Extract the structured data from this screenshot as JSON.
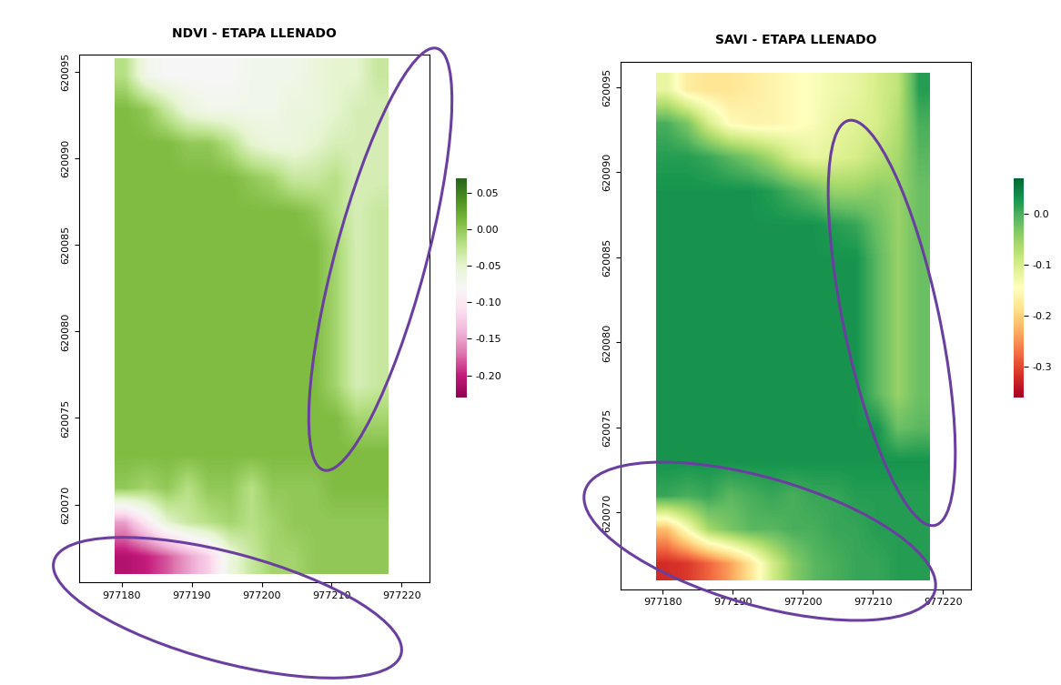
{
  "chart_data": [
    {
      "type": "heatmap",
      "title": "NDVI - ETAPA LLENADO",
      "xlim": [
        977174,
        977224
      ],
      "xticks": [
        977180,
        977190,
        977200,
        977210,
        977220
      ],
      "ylim": [
        620065.5,
        620096
      ],
      "yticks": [
        620070,
        620075,
        620080,
        620085,
        620090,
        620095
      ],
      "cells_x_range": [
        977179,
        977218
      ],
      "cells_y_range": [
        620066,
        620095.8
      ],
      "cells": [
        [
          -0.02,
          -0.07,
          -0.08,
          -0.08,
          -0.08,
          -0.08,
          -0.07,
          -0.07,
          -0.07,
          -0.06,
          -0.05,
          -0.05,
          -0.03
        ],
        [
          0.01,
          0.0,
          -0.03,
          -0.06,
          -0.07,
          -0.07,
          -0.07,
          -0.07,
          -0.06,
          -0.06,
          -0.05,
          -0.04,
          -0.04
        ],
        [
          0.01,
          0.01,
          0.01,
          0.0,
          0.0,
          -0.02,
          -0.05,
          -0.06,
          -0.06,
          -0.05,
          -0.04,
          -0.04,
          -0.04
        ],
        [
          0.01,
          0.01,
          0.01,
          0.01,
          0.01,
          0.01,
          0.0,
          -0.01,
          -0.03,
          -0.03,
          -0.02,
          -0.04,
          -0.04
        ],
        [
          0.01,
          0.01,
          0.01,
          0.01,
          0.01,
          0.01,
          0.01,
          0.01,
          0.01,
          0.0,
          -0.02,
          -0.04,
          -0.03
        ],
        [
          0.01,
          0.01,
          0.01,
          0.01,
          0.01,
          0.01,
          0.01,
          0.01,
          0.01,
          0.01,
          -0.01,
          -0.04,
          -0.03
        ],
        [
          0.01,
          0.01,
          0.01,
          0.01,
          0.01,
          0.01,
          0.01,
          0.01,
          0.01,
          0.01,
          -0.01,
          -0.04,
          -0.03
        ],
        [
          0.01,
          0.01,
          0.01,
          0.01,
          0.01,
          0.01,
          0.01,
          0.01,
          0.01,
          0.01,
          -0.01,
          -0.04,
          -0.03
        ],
        [
          0.01,
          0.01,
          0.01,
          0.01,
          0.01,
          0.01,
          0.01,
          0.01,
          0.01,
          0.01,
          -0.01,
          -0.04,
          -0.03
        ],
        [
          0.01,
          0.01,
          0.01,
          0.01,
          0.01,
          0.01,
          0.01,
          0.01,
          0.01,
          0.01,
          -0.01,
          -0.04,
          -0.03
        ],
        [
          0.01,
          0.01,
          0.01,
          0.01,
          0.01,
          0.01,
          0.01,
          0.01,
          0.01,
          0.01,
          0.01,
          -0.01,
          -0.01
        ],
        [
          0.01,
          0.01,
          0.01,
          0.01,
          0.01,
          0.01,
          0.01,
          0.01,
          0.01,
          0.01,
          0.01,
          0.01,
          0.01
        ],
        [
          0.0,
          -0.01,
          0.0,
          -0.02,
          0.0,
          0.0,
          -0.02,
          0.0,
          0.0,
          0.0,
          0.01,
          0.01,
          0.01
        ],
        [
          -0.15,
          -0.1,
          -0.05,
          -0.03,
          -0.02,
          -0.01,
          -0.02,
          -0.01,
          0.0,
          0.0,
          0.0,
          0.0,
          0.0
        ],
        [
          -0.21,
          -0.2,
          -0.18,
          -0.15,
          -0.12,
          -0.06,
          -0.03,
          -0.01,
          -0.01,
          0.0,
          0.0,
          0.0,
          0.0
        ]
      ],
      "color_range": [
        -0.23,
        0.07
      ],
      "color_ticks": [
        {
          "value": 0.05,
          "label": "0.05"
        },
        {
          "value": 0,
          "label": "0.00"
        },
        {
          "value": -0.05,
          "label": "-0.05"
        },
        {
          "value": -0.1,
          "label": "-0.10"
        },
        {
          "value": -0.15,
          "label": "-0.15"
        },
        {
          "value": -0.2,
          "label": "-0.20"
        }
      ]
    },
    {
      "type": "heatmap",
      "title": "SAVI - ETAPA LLENADO",
      "xlim": [
        977174,
        977224
      ],
      "xticks": [
        977180,
        977190,
        977200,
        977210,
        977220
      ],
      "ylim": [
        620065.5,
        620096.5
      ],
      "yticks": [
        620070,
        620075,
        620080,
        620085,
        620090,
        620095
      ],
      "cells_x_range": [
        977179,
        977218
      ],
      "cells_y_range": [
        620066,
        620095.8
      ],
      "cells": [
        [
          -0.12,
          -0.17,
          -0.18,
          -0.18,
          -0.17,
          -0.16,
          -0.15,
          -0.14,
          -0.13,
          -0.12,
          -0.1,
          -0.08,
          0.02
        ],
        [
          0.0,
          -0.03,
          -0.1,
          -0.15,
          -0.16,
          -0.16,
          -0.15,
          -0.14,
          -0.12,
          -0.11,
          -0.1,
          -0.07,
          0.0
        ],
        [
          0.02,
          0.02,
          0.01,
          -0.01,
          -0.03,
          -0.06,
          -0.1,
          -0.12,
          -0.11,
          -0.1,
          -0.08,
          -0.06,
          -0.01
        ],
        [
          0.03,
          0.03,
          0.03,
          0.03,
          0.03,
          0.02,
          0.0,
          -0.02,
          -0.05,
          -0.05,
          -0.04,
          -0.05,
          -0.02
        ],
        [
          0.03,
          0.03,
          0.03,
          0.03,
          0.03,
          0.03,
          0.03,
          0.03,
          0.02,
          0.01,
          -0.02,
          -0.05,
          -0.02
        ],
        [
          0.03,
          0.03,
          0.03,
          0.03,
          0.03,
          0.03,
          0.03,
          0.03,
          0.03,
          0.03,
          -0.01,
          -0.05,
          -0.02
        ],
        [
          0.03,
          0.03,
          0.03,
          0.03,
          0.03,
          0.03,
          0.03,
          0.03,
          0.03,
          0.03,
          -0.01,
          -0.05,
          -0.02
        ],
        [
          0.03,
          0.03,
          0.03,
          0.03,
          0.03,
          0.03,
          0.03,
          0.03,
          0.03,
          0.03,
          -0.01,
          -0.05,
          -0.02
        ],
        [
          0.03,
          0.03,
          0.03,
          0.03,
          0.03,
          0.03,
          0.03,
          0.03,
          0.03,
          0.03,
          -0.01,
          -0.05,
          -0.02
        ],
        [
          0.03,
          0.03,
          0.03,
          0.03,
          0.03,
          0.03,
          0.03,
          0.03,
          0.03,
          0.03,
          -0.01,
          -0.05,
          -0.02
        ],
        [
          0.03,
          0.03,
          0.03,
          0.03,
          0.03,
          0.03,
          0.03,
          0.03,
          0.03,
          0.03,
          0.03,
          -0.02,
          -0.01
        ],
        [
          0.03,
          0.03,
          0.03,
          0.03,
          0.03,
          0.03,
          0.03,
          0.03,
          0.03,
          0.03,
          0.03,
          0.03,
          0.03
        ],
        [
          0.01,
          0.0,
          0.01,
          -0.01,
          0.0,
          0.01,
          0.0,
          0.01,
          0.01,
          0.02,
          0.02,
          0.02,
          0.02
        ],
        [
          -0.22,
          -0.14,
          -0.06,
          -0.03,
          -0.01,
          -0.01,
          0.0,
          0.0,
          0.01,
          0.01,
          0.02,
          0.02,
          0.02
        ],
        [
          -0.32,
          -0.31,
          -0.28,
          -0.24,
          -0.18,
          -0.1,
          -0.04,
          -0.01,
          0.0,
          0.01,
          0.01,
          0.02,
          0.02
        ]
      ],
      "color_range": [
        -0.36,
        0.07
      ],
      "color_ticks": [
        0.0,
        -0.1,
        -0.2,
        -0.3
      ]
    }
  ]
}
